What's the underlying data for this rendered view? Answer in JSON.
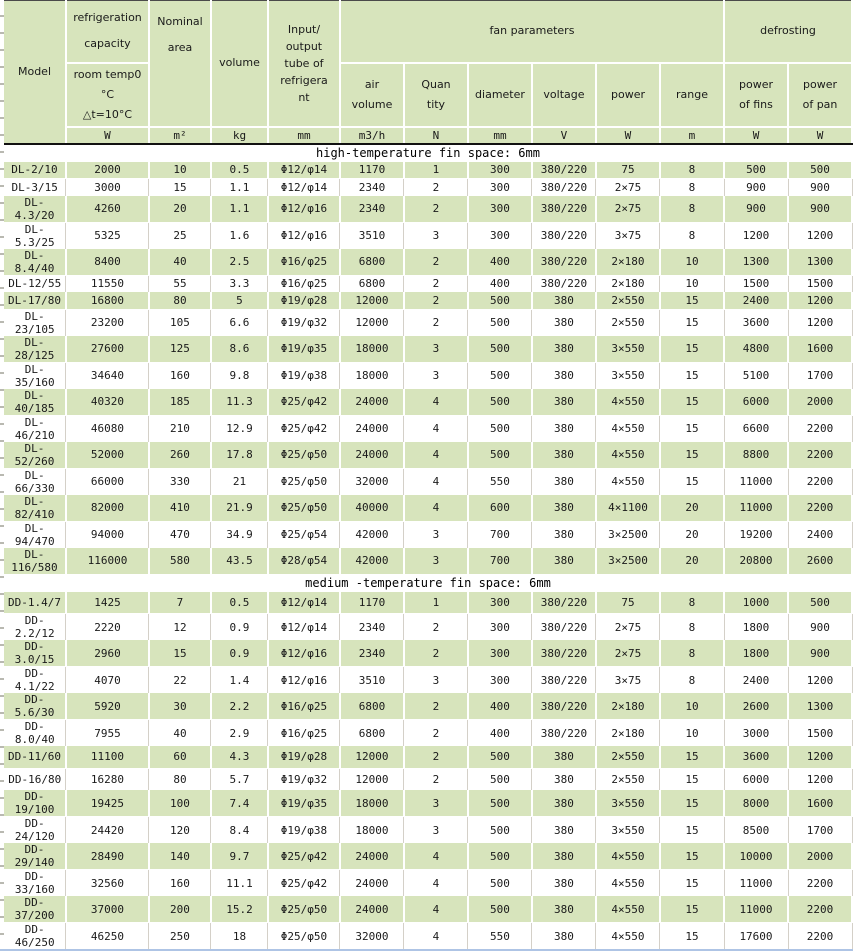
{
  "table": {
    "header": {
      "model": "Model",
      "capacity_title": "refrigeration capacity",
      "capacity_condition": "room temp0\n°C\n△t=10°C",
      "nominal_area": "Nominal area",
      "volume": "volume",
      "refrigerant_tube": "Input/\noutput\ntube of\nrefrigera\nnt",
      "fan_parameters": "fan parameters",
      "defrosting": "defrosting",
      "subheaders": [
        "air\nvolume",
        "Quan\ntity",
        "diameter",
        "voltage",
        "power",
        "range",
        "power\nof fins",
        "power\nof pan"
      ],
      "units": [
        "W",
        "m²",
        "kg",
        "mm",
        "m3/h",
        "N",
        "mm",
        "V",
        "W",
        "m",
        "W",
        "W"
      ]
    },
    "columns": [
      "model",
      "refrigeration_capacity_W",
      "nominal_area_m2",
      "volume_kg",
      "refrigerant_tube_mm",
      "air_volume_m3h",
      "fan_quantity_N",
      "fan_diameter_mm",
      "voltage_V",
      "fan_power_W",
      "fan_range_m",
      "defrost_power_of_fins_W",
      "defrost_power_of_pan_W"
    ],
    "sections": [
      {
        "title": "high-temperature fin space: 6mm",
        "rows": [
          [
            "DL-2/10",
            "2000",
            "10",
            "0.5",
            "Φ12/φ14",
            "1170",
            "1",
            "300",
            "380/220",
            "75",
            "8",
            "500",
            "500"
          ],
          [
            "DL-3/15",
            "3000",
            "15",
            "1.1",
            "Φ12/φ14",
            "2340",
            "2",
            "300",
            "380/220",
            "2×75",
            "8",
            "900",
            "900"
          ],
          [
            "DL-4.3/20",
            "4260",
            "20",
            "1.1",
            "Φ12/φ16",
            "2340",
            "2",
            "300",
            "380/220",
            "2×75",
            "8",
            "900",
            "900"
          ],
          [
            "DL-5.3/25",
            "5325",
            "25",
            "1.6",
            "Φ12/φ16",
            "3510",
            "3",
            "300",
            "380/220",
            "3×75",
            "8",
            "1200",
            "1200"
          ],
          [
            "DL-8.4/40",
            "8400",
            "40",
            "2.5",
            "Φ16/φ25",
            "6800",
            "2",
            "400",
            "380/220",
            "2×180",
            "10",
            "1300",
            "1300"
          ],
          [
            "DL-12/55",
            "11550",
            "55",
            "3.3",
            "Φ16/φ25",
            "6800",
            "2",
            "400",
            "380/220",
            "2×180",
            "10",
            "1500",
            "1500"
          ],
          [
            "DL-17/80",
            "16800",
            "80",
            "5",
            "Φ19/φ28",
            "12000",
            "2",
            "500",
            "380",
            "2×550",
            "15",
            "2400",
            "1200"
          ],
          [
            "DL-23/105",
            "23200",
            "105",
            "6.6",
            "Φ19/φ32",
            "12000",
            "2",
            "500",
            "380",
            "2×550",
            "15",
            "3600",
            "1200"
          ],
          [
            "DL-28/125",
            "27600",
            "125",
            "8.6",
            "Φ19/φ35",
            "18000",
            "3",
            "500",
            "380",
            "3×550",
            "15",
            "4800",
            "1600"
          ],
          [
            "DL-35/160",
            "34640",
            "160",
            "9.8",
            "Φ19/φ38",
            "18000",
            "3",
            "500",
            "380",
            "3×550",
            "15",
            "5100",
            "1700"
          ],
          [
            "DL-40/185",
            "40320",
            "185",
            "11.3",
            "Φ25/φ42",
            "24000",
            "4",
            "500",
            "380",
            "4×550",
            "15",
            "6000",
            "2000"
          ],
          [
            "DL-46/210",
            "46080",
            "210",
            "12.9",
            "Φ25/φ42",
            "24000",
            "4",
            "500",
            "380",
            "4×550",
            "15",
            "6600",
            "2200"
          ],
          [
            "DL-52/260",
            "52000",
            "260",
            "17.8",
            "Φ25/φ50",
            "24000",
            "4",
            "500",
            "380",
            "4×550",
            "15",
            "8800",
            "2200"
          ],
          [
            "DL-66/330",
            "66000",
            "330",
            "21",
            "Φ25/φ50",
            "32000",
            "4",
            "550",
            "380",
            "4×550",
            "15",
            "11000",
            "2200"
          ],
          [
            "DL-82/410",
            "82000",
            "410",
            "21.9",
            "Φ25/φ50",
            "40000",
            "4",
            "600",
            "380",
            "4×1100",
            "20",
            "11000",
            "2200"
          ],
          [
            "DL-94/470",
            "94000",
            "470",
            "34.9",
            "Φ25/φ54",
            "42000",
            "3",
            "700",
            "380",
            "3×2500",
            "20",
            "19200",
            "2400"
          ],
          [
            "DL-116/580",
            "116000",
            "580",
            "43.5",
            "Φ28/φ54",
            "42000",
            "3",
            "700",
            "380",
            "3×2500",
            "20",
            "20800",
            "2600"
          ]
        ]
      },
      {
        "title": "medium -temperature fin space: 6mm",
        "rows": [
          [
            "DD-1.4/7",
            "1425",
            "7",
            "0.5",
            "Φ12/φ14",
            "1170",
            "1",
            "300",
            "380/220",
            "75",
            "8",
            "1000",
            "500"
          ],
          [
            "DD-2.2/12",
            "2220",
            "12",
            "0.9",
            "Φ12/φ14",
            "2340",
            "2",
            "300",
            "380/220",
            "2×75",
            "8",
            "1800",
            "900"
          ],
          [
            "DD-3.0/15",
            "2960",
            "15",
            "0.9",
            "Φ12/φ16",
            "2340",
            "2",
            "300",
            "380/220",
            "2×75",
            "8",
            "1800",
            "900"
          ],
          [
            "DD-4.1/22",
            "4070",
            "22",
            "1.4",
            "Φ12/φ16",
            "3510",
            "3",
            "300",
            "380/220",
            "3×75",
            "8",
            "2400",
            "1200"
          ],
          [
            "DD-5.6/30",
            "5920",
            "30",
            "2.2",
            "Φ16/φ25",
            "6800",
            "2",
            "400",
            "380/220",
            "2×180",
            "10",
            "2600",
            "1300"
          ],
          [
            "DD-8.0/40",
            "7955",
            "40",
            "2.9",
            "Φ16/φ25",
            "6800",
            "2",
            "400",
            "380/220",
            "2×180",
            "10",
            "3000",
            "1500"
          ],
          [
            "DD-11/60",
            "11100",
            "60",
            "4.3",
            "Φ19/φ28",
            "12000",
            "2",
            "500",
            "380",
            "2×550",
            "15",
            "3600",
            "1200"
          ],
          [
            "DD-16/80",
            "16280",
            "80",
            "5.7",
            "Φ19/φ32",
            "12000",
            "2",
            "500",
            "380",
            "2×550",
            "15",
            "6000",
            "1200"
          ],
          [
            "DD-19/100",
            "19425",
            "100",
            "7.4",
            "Φ19/φ35",
            "18000",
            "3",
            "500",
            "380",
            "3×550",
            "15",
            "8000",
            "1600"
          ],
          [
            "DD-24/120",
            "24420",
            "120",
            "8.4",
            "Φ19/φ38",
            "18000",
            "3",
            "500",
            "380",
            "3×550",
            "15",
            "8500",
            "1700"
          ],
          [
            "DD-29/140",
            "28490",
            "140",
            "9.7",
            "Φ25/φ42",
            "24000",
            "4",
            "500",
            "380",
            "4×550",
            "15",
            "10000",
            "2000"
          ],
          [
            "DD-33/160",
            "32560",
            "160",
            "11.1",
            "Φ25/φ42",
            "24000",
            "4",
            "500",
            "380",
            "4×550",
            "15",
            "11000",
            "2200"
          ],
          [
            "DD-37/200",
            "37000",
            "200",
            "15.2",
            "Φ25/φ50",
            "24000",
            "4",
            "500",
            "380",
            "4×550",
            "15",
            "11000",
            "2200"
          ],
          [
            "DD-46/250",
            "46250",
            "250",
            "18",
            "Φ25/φ50",
            "32000",
            "4",
            "550",
            "380",
            "4×550",
            "15",
            "17600",
            "2200"
          ]
        ]
      }
    ]
  },
  "colors": {
    "cell_green": "#d7e4bc",
    "grid_gray": "#d4d0c8",
    "unit_underline_black": "#111111",
    "bottom_edge_blue": "#aec4e5"
  }
}
